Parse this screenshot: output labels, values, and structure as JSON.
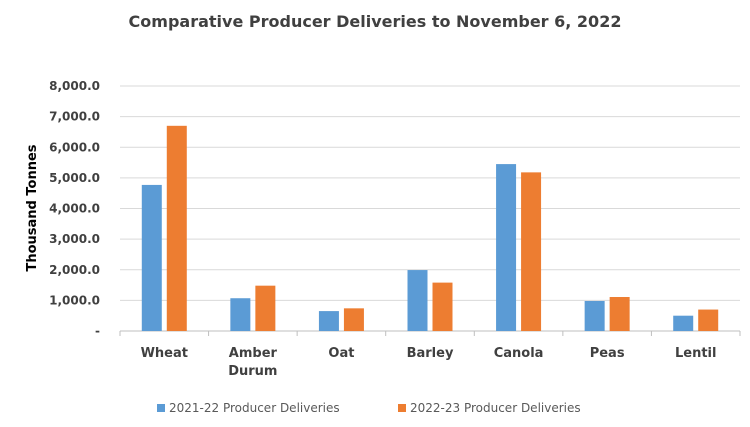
{
  "chart_data": {
    "type": "bar",
    "title": "Comparative Producer Deliveries to November 6, 2022",
    "xlabel": "",
    "ylabel": "Thousand Tonnes",
    "categories": [
      [
        "Wheat"
      ],
      [
        "Amber",
        "Durum"
      ],
      [
        "Oat"
      ],
      [
        "Barley"
      ],
      [
        "Canola"
      ],
      [
        "Peas"
      ],
      [
        "Lentil"
      ]
    ],
    "series": [
      {
        "name": "2021-22 Producer Deliveries",
        "color": "#5B9BD5",
        "values": [
          4770,
          1070,
          650,
          1990,
          5450,
          980,
          500
        ]
      },
      {
        "name": "2022-23 Producer Deliveries",
        "color": "#ED7D31",
        "values": [
          6700,
          1480,
          740,
          1580,
          5180,
          1110,
          700
        ]
      }
    ],
    "ylim": [
      0,
      8000
    ],
    "yticks": [
      0,
      1000,
      2000,
      3000,
      4000,
      5000,
      6000,
      7000,
      8000
    ],
    "ytick_labels": [
      "-",
      "1,000.0",
      "2,000.0",
      "3,000.0",
      "4,000.0",
      "5,000.0",
      "6,000.0",
      "7,000.0",
      "8,000.0"
    ],
    "grid": true,
    "legend_position": "bottom"
  }
}
